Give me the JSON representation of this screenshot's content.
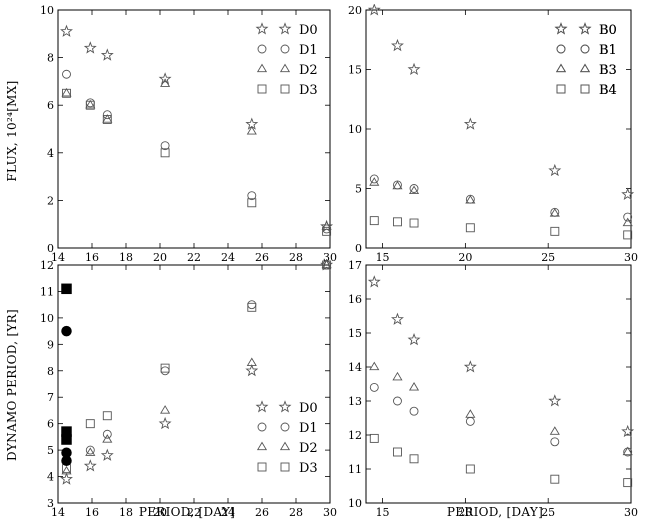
{
  "figure": {
    "ylabel_top": "FLUX, 10²⁴[MX]",
    "ylabel_bottom": "DYNAMO PERIOD, [YR]",
    "xlabel": "PERIOD, [DAY]"
  },
  "chart_data": [
    {
      "type": "scatter",
      "panel": "top-left",
      "title": "",
      "xlabel": "",
      "ylabel": "FLUX, 10²⁴[MX]",
      "xlim": [
        14,
        30
      ],
      "ylim": [
        0,
        10
      ],
      "xticks": [
        "14",
        "16",
        "18",
        "20",
        "22",
        "24",
        "26",
        "28",
        "30"
      ],
      "yticks": [
        "0",
        "2",
        "4",
        "6",
        "8",
        "10"
      ],
      "grid": false,
      "legend": "top-right",
      "series": [
        {
          "name": "D0",
          "marker": "star",
          "x": [
            14.5,
            15.9,
            16.9,
            20.3,
            25.4,
            29.8
          ],
          "y": [
            9.1,
            8.4,
            8.1,
            7.1,
            5.2,
            0.9
          ]
        },
        {
          "name": "D1",
          "marker": "circle",
          "x": [
            14.5,
            15.9,
            16.9,
            20.3,
            25.4,
            29.8
          ],
          "y": [
            7.3,
            6.1,
            5.6,
            4.3,
            2.2,
            0.8
          ]
        },
        {
          "name": "D2",
          "marker": "triangle",
          "x": [
            14.5,
            15.9,
            16.9,
            20.3,
            25.4,
            29.8
          ],
          "y": [
            6.5,
            6.0,
            5.4,
            6.9,
            4.9,
            0.9
          ]
        },
        {
          "name": "D3",
          "marker": "square",
          "x": [
            14.5,
            15.9,
            16.9,
            20.3,
            25.4,
            29.8
          ],
          "y": [
            6.5,
            6.0,
            5.4,
            4.0,
            1.9,
            0.7
          ]
        }
      ]
    },
    {
      "type": "scatter",
      "panel": "top-right",
      "title": "",
      "xlabel": "",
      "ylabel": "",
      "xlim": [
        14,
        30
      ],
      "ylim": [
        0,
        20
      ],
      "xticks": [
        "15",
        "20",
        "25",
        "30"
      ],
      "yticks": [
        "0",
        "5",
        "10",
        "15",
        "20"
      ],
      "grid": false,
      "legend": "top-right",
      "series": [
        {
          "name": "B0",
          "marker": "star",
          "x": [
            14.5,
            15.9,
            16.9,
            20.3,
            25.4,
            29.8
          ],
          "y": [
            20.0,
            17.0,
            15.0,
            10.4,
            6.5,
            4.5
          ]
        },
        {
          "name": "B1",
          "marker": "circle",
          "x": [
            14.5,
            15.9,
            16.9,
            20.3,
            25.4,
            29.8
          ],
          "y": [
            5.8,
            5.3,
            5.0,
            4.1,
            3.0,
            2.6
          ]
        },
        {
          "name": "B3",
          "marker": "triangle",
          "x": [
            14.5,
            15.9,
            16.9,
            20.3,
            25.4,
            29.8
          ],
          "y": [
            5.5,
            5.2,
            4.8,
            4.0,
            2.9,
            2.1
          ]
        },
        {
          "name": "B4",
          "marker": "square",
          "x": [
            14.5,
            15.9,
            16.9,
            20.3,
            25.4,
            29.8
          ],
          "y": [
            2.3,
            2.2,
            2.1,
            1.7,
            1.4,
            1.1
          ]
        }
      ]
    },
    {
      "type": "scatter",
      "panel": "bottom-left",
      "title": "",
      "xlabel": "PERIOD, [DAY]",
      "ylabel": "DYNAMO PERIOD, [YR]",
      "xlim": [
        14,
        30
      ],
      "ylim": [
        3,
        12
      ],
      "xticks": [
        "14",
        "16",
        "18",
        "20",
        "22",
        "24",
        "26",
        "28",
        "30"
      ],
      "yticks": [
        "3",
        "4",
        "5",
        "6",
        "7",
        "8",
        "9",
        "10",
        "11",
        "12"
      ],
      "grid": false,
      "legend": "bottom-right",
      "series": [
        {
          "name": "D0",
          "marker": "star",
          "x": [
            14.5,
            15.9,
            16.9,
            20.3,
            25.4,
            29.8
          ],
          "y": [
            3.9,
            4.4,
            4.8,
            6.0,
            8.0,
            12.0
          ]
        },
        {
          "name": "D1",
          "marker": "circle",
          "x": [
            14.5,
            15.9,
            16.9,
            20.3,
            25.4,
            29.8
          ],
          "y": [
            4.6,
            5.0,
            5.6,
            8.0,
            10.5,
            12.0
          ]
        },
        {
          "name": "D2",
          "marker": "triangle",
          "x": [
            14.5,
            15.9,
            16.9,
            20.3,
            25.4,
            29.8
          ],
          "y": [
            4.2,
            4.9,
            5.4,
            6.5,
            8.3,
            12.0
          ]
        },
        {
          "name": "D3",
          "marker": "square",
          "x": [
            14.5,
            15.9,
            16.9,
            20.3,
            25.4,
            29.8
          ],
          "y": [
            4.3,
            6.0,
            6.3,
            8.1,
            10.4,
            12.0
          ]
        }
      ],
      "filled_points": [
        {
          "marker": "square",
          "x": 14.5,
          "y": 11.1
        },
        {
          "marker": "circle",
          "x": 14.5,
          "y": 9.5
        },
        {
          "marker": "square",
          "x": 14.5,
          "y": 5.7
        },
        {
          "marker": "square",
          "x": 14.5,
          "y": 5.4
        },
        {
          "marker": "circle",
          "x": 14.5,
          "y": 4.9
        },
        {
          "marker": "circle",
          "x": 14.5,
          "y": 4.6
        }
      ]
    },
    {
      "type": "scatter",
      "panel": "bottom-right",
      "title": "",
      "xlabel": "PERIOD, [DAY]",
      "ylabel": "",
      "xlim": [
        14,
        30
      ],
      "ylim": [
        10,
        17
      ],
      "xticks": [
        "15",
        "20",
        "25",
        "30"
      ],
      "yticks": [
        "10",
        "11",
        "12",
        "13",
        "14",
        "15",
        "16",
        "17"
      ],
      "grid": false,
      "legend": "top-right",
      "series": [
        {
          "name": "B0",
          "marker": "star",
          "x": [
            14.5,
            15.9,
            16.9,
            20.3,
            25.4,
            29.8
          ],
          "y": [
            16.5,
            15.4,
            14.8,
            14.0,
            13.0,
            12.1
          ]
        },
        {
          "name": "B1",
          "marker": "circle",
          "x": [
            14.5,
            15.9,
            16.9,
            20.3,
            25.4,
            29.8
          ],
          "y": [
            13.4,
            13.0,
            12.7,
            12.4,
            11.8,
            11.5
          ]
        },
        {
          "name": "B3",
          "marker": "triangle",
          "x": [
            14.5,
            15.9,
            16.9,
            20.3,
            25.4,
            29.8
          ],
          "y": [
            14.0,
            13.7,
            13.4,
            12.6,
            12.1,
            11.5
          ]
        },
        {
          "name": "B4",
          "marker": "square",
          "x": [
            14.5,
            15.9,
            16.9,
            20.3,
            25.4,
            29.8
          ],
          "y": [
            11.9,
            11.5,
            11.3,
            11.0,
            10.7,
            10.6
          ]
        }
      ]
    }
  ]
}
